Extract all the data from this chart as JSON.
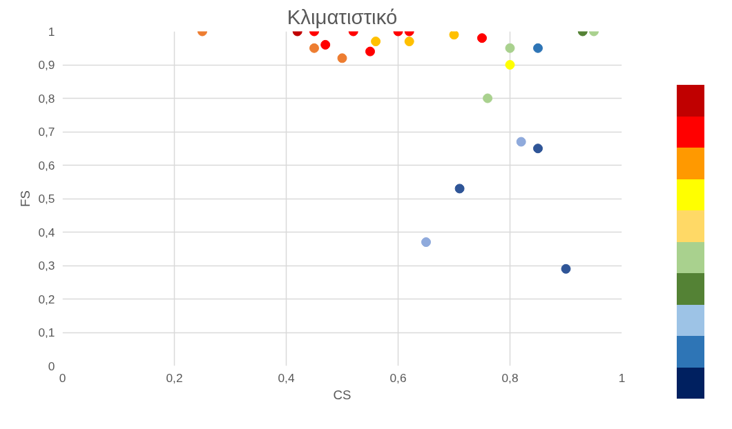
{
  "chart_data": {
    "type": "scatter",
    "title": "Κλιματιστικό",
    "xlabel": "CS",
    "ylabel": "FS",
    "x": [
      0.25,
      0.42,
      0.45,
      0.45,
      0.47,
      0.5,
      0.52,
      0.55,
      0.56,
      0.6,
      0.62,
      0.62,
      0.7,
      0.75,
      0.8,
      0.8,
      0.76,
      0.85,
      0.82,
      0.85,
      0.71,
      0.65,
      0.9,
      0.93,
      0.95
    ],
    "values": [
      1,
      1,
      1,
      0.95,
      0.96,
      0.92,
      1,
      0.94,
      0.97,
      1,
      1,
      0.97,
      0.99,
      0.98,
      0.95,
      0.9,
      0.8,
      0.95,
      0.67,
      0.65,
      0.53,
      0.37,
      0.29,
      1,
      1
    ],
    "colors": [
      "#ed7d31",
      "#c00000",
      "#ff0000",
      "#ed7d31",
      "#ff0000",
      "#ed7d31",
      "#ff0000",
      "#ff0000",
      "#ffc000",
      "#ff0000",
      "#ff0000",
      "#ffc000",
      "#ffc000",
      "#ff0000",
      "#a9d18e",
      "#ffff00",
      "#a9d18e",
      "#2e75b6",
      "#8faadc",
      "#2f5597",
      "#2f5597",
      "#8faadc",
      "#2f5597",
      "#548235",
      "#a9d18e"
    ],
    "xlim": [
      0,
      1
    ],
    "ylim": [
      0,
      1
    ],
    "xticks": [
      {
        "value": 0,
        "label": "0"
      },
      {
        "value": 0.2,
        "label": "0,2"
      },
      {
        "value": 0.4,
        "label": "0,4"
      },
      {
        "value": 0.6,
        "label": "0,6"
      },
      {
        "value": 0.8,
        "label": "0,8"
      },
      {
        "value": 1,
        "label": "1"
      }
    ],
    "yticks": [
      {
        "value": 0,
        "label": "0"
      },
      {
        "value": 0.1,
        "label": "0,1"
      },
      {
        "value": 0.2,
        "label": "0,2"
      },
      {
        "value": 0.3,
        "label": "0,3"
      },
      {
        "value": 0.4,
        "label": "0,4"
      },
      {
        "value": 0.5,
        "label": "0,5"
      },
      {
        "value": 0.6,
        "label": "0,6"
      },
      {
        "value": 0.7,
        "label": "0,7"
      },
      {
        "value": 0.8,
        "label": "0,8"
      },
      {
        "value": 0.9,
        "label": "0,9"
      },
      {
        "value": 1,
        "label": "1"
      }
    ],
    "grid": true,
    "marker": "circle"
  }
}
